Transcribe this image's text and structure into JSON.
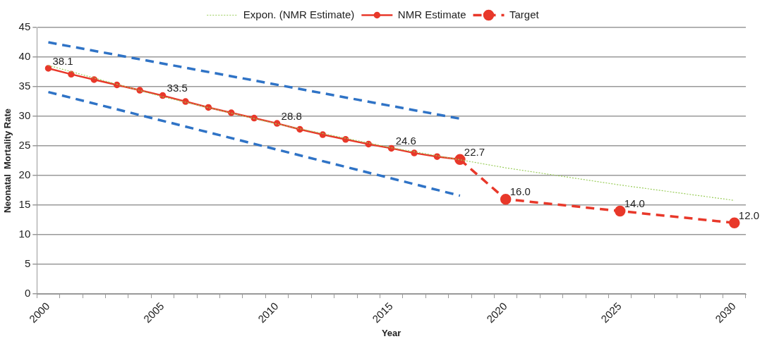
{
  "chart_data": {
    "type": "line",
    "xlabel": "Year",
    "ylabel": "Neonatal  Mortality Rate",
    "categories": [
      "2000",
      null,
      null,
      null,
      null,
      "2005",
      null,
      null,
      null,
      null,
      "2010",
      null,
      null,
      null,
      null,
      "2015",
      null,
      null,
      null,
      null,
      "2020",
      null,
      null,
      null,
      null,
      "2025",
      null,
      null,
      null,
      null,
      "2030"
    ],
    "ylim": [
      0,
      45
    ],
    "yticks": [
      0,
      5,
      10,
      15,
      20,
      25,
      30,
      35,
      40,
      45
    ],
    "grid": "y",
    "legend": "top",
    "series": [
      {
        "name": "NMR Estimate",
        "color": "#e8382a",
        "marker": "circle",
        "line_style": "solid",
        "values": [
          38.1,
          37.1,
          36.2,
          35.3,
          34.4,
          33.5,
          32.5,
          31.5,
          30.6,
          29.7,
          28.8,
          27.8,
          26.9,
          26.1,
          25.3,
          24.6,
          23.8,
          23.2,
          22.7,
          null,
          null,
          null,
          null,
          null,
          null,
          null,
          null,
          null,
          null,
          null,
          null
        ],
        "value_labels": [
          "38.1",
          null,
          null,
          null,
          null,
          "33.5",
          null,
          null,
          null,
          null,
          "28.8",
          null,
          null,
          null,
          null,
          "24.6",
          null,
          null,
          null,
          null,
          null,
          null,
          null,
          null,
          null,
          null,
          null,
          null,
          null,
          null,
          null
        ]
      },
      {
        "name": "Target",
        "color": "#e8382a",
        "marker": "circle",
        "line_style": "dashed",
        "values": [
          null,
          null,
          null,
          null,
          null,
          null,
          null,
          null,
          null,
          null,
          null,
          null,
          null,
          null,
          null,
          null,
          null,
          null,
          22.7,
          null,
          16.0,
          null,
          null,
          null,
          null,
          14.0,
          null,
          null,
          null,
          null,
          12.0
        ],
        "value_labels": [
          null,
          null,
          null,
          null,
          null,
          null,
          null,
          null,
          null,
          null,
          null,
          null,
          null,
          null,
          null,
          null,
          null,
          null,
          "22.7",
          null,
          "16.0",
          null,
          null,
          null,
          null,
          "14.0",
          null,
          null,
          null,
          null,
          "12.0"
        ]
      },
      {
        "name": "Expon. (NMR Estimate)",
        "type": "line",
        "color": "#9acd5a",
        "marker": "none",
        "line_style": "dotted",
        "values": [
          38.6,
          null,
          null,
          null,
          null,
          33.3,
          null,
          null,
          null,
          null,
          28.7,
          null,
          null,
          null,
          null,
          24.7,
          null,
          null,
          null,
          null,
          21.3,
          null,
          null,
          null,
          null,
          18.4,
          null,
          null,
          null,
          null,
          15.8
        ]
      },
      {
        "color": "#2f73c6",
        "marker": "none",
        "line_style": "dashed",
        "values": [
          42.5,
          null,
          null,
          null,
          null,
          null,
          null,
          null,
          null,
          null,
          null,
          null,
          null,
          null,
          null,
          null,
          null,
          null,
          29.6,
          null,
          null,
          null,
          null,
          null,
          null,
          null,
          null,
          null,
          null,
          null,
          null
        ]
      },
      {
        "color": "#2f73c6",
        "marker": "none",
        "line_style": "dashed",
        "values": [
          34.1,
          null,
          null,
          null,
          null,
          null,
          null,
          null,
          null,
          null,
          null,
          null,
          null,
          null,
          null,
          null,
          null,
          null,
          16.6,
          null,
          null,
          null,
          null,
          null,
          null,
          null,
          null,
          null,
          null,
          null,
          null
        ]
      }
    ]
  }
}
